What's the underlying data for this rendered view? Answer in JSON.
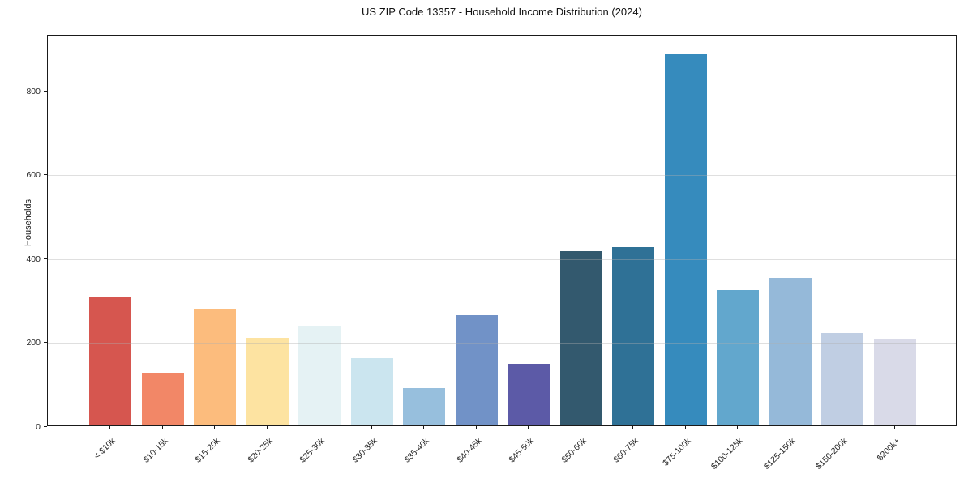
{
  "chart_data": {
    "type": "bar",
    "title": "US ZIP Code 13357 - Household Income Distribution (2024)",
    "xlabel": "",
    "ylabel": "Households",
    "categories": [
      "< $10k",
      "$10-15k",
      "$15-20k",
      "$20-25k",
      "$25-30k",
      "$30-35k",
      "$35-40k",
      "$40-45k",
      "$45-50k",
      "$50-60k",
      "$60-75k",
      "$75-100k",
      "$100-125k",
      "$125-150k",
      "$150-200k",
      "$200k+"
    ],
    "values": [
      305,
      124,
      276,
      208,
      237,
      161,
      88,
      262,
      147,
      415,
      425,
      885,
      322,
      352,
      221,
      205
    ],
    "bar_colors": [
      "#d6564f",
      "#f28767",
      "#fcbc7d",
      "#fde3a1",
      "#e5f2f4",
      "#cbe5ef",
      "#97bfdd",
      "#7192c7",
      "#5c5aa7",
      "#33596e",
      "#2f7196",
      "#368bbd",
      "#62a7cd",
      "#95b9d9",
      "#c0cee3",
      "#d9dae8"
    ],
    "yticks": [
      0,
      200,
      400,
      600,
      800
    ],
    "ylim": [
      0,
      933
    ],
    "grid": "horizontal-gridlines-over-bars",
    "legend": "none",
    "xtick_rotation": 45
  }
}
